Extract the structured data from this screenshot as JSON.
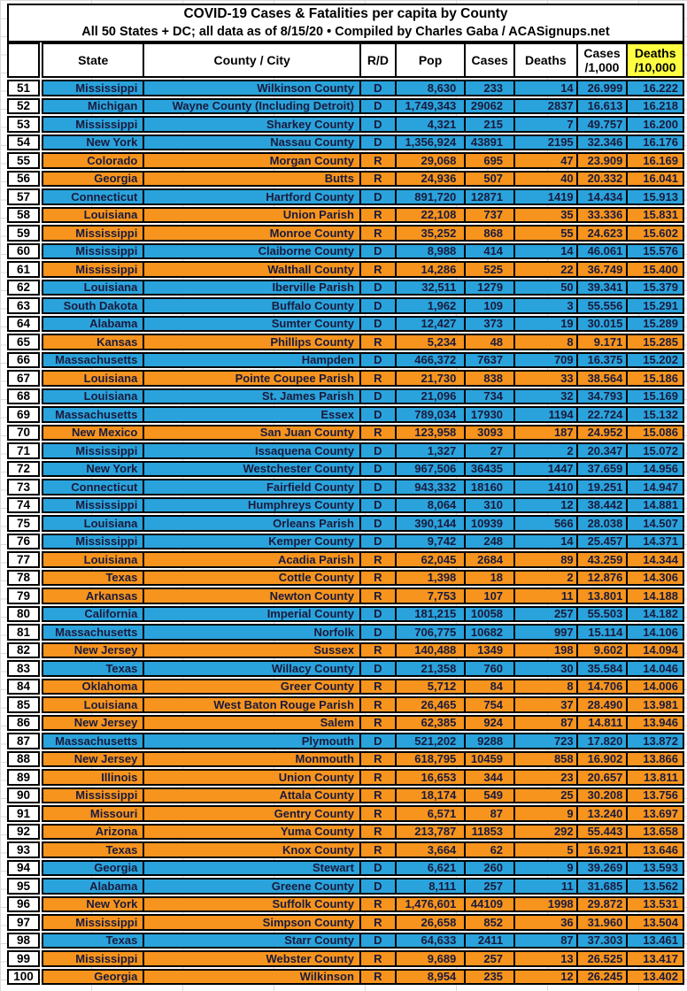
{
  "title": {
    "line1": "COVID-19 Cases & Fatalities per capita by County",
    "line2": "All 50 States + DC; all data as of 8/15/20  • Compiled by Charles Gaba / ACASignups.net"
  },
  "colors": {
    "democrat_row": "#2aa3dc",
    "republican_row": "#f7941e",
    "deaths_header_highlight": "#ffff42",
    "cell_text": "#1a1a3c",
    "grid_border": "#000000"
  },
  "columns": [
    {
      "key": "rank",
      "label": ""
    },
    {
      "key": "state",
      "label": "State"
    },
    {
      "key": "county",
      "label": "County / City"
    },
    {
      "key": "party",
      "label": "R/D"
    },
    {
      "key": "pop",
      "label": "Pop"
    },
    {
      "key": "cases",
      "label": "Cases"
    },
    {
      "key": "deaths",
      "label": "Deaths"
    },
    {
      "key": "cases_per_1000",
      "label": "Cases\n/1,000"
    },
    {
      "key": "deaths_per_10000",
      "label": "Deaths\n/10,000"
    }
  ],
  "rows": [
    {
      "rank": "51",
      "state": "Mississippi",
      "county": "Wilkinson County",
      "party": "D",
      "pop": "8,630",
      "cases": "233",
      "deaths": "14",
      "cases_per_1000": "26.999",
      "deaths_per_10000": "16.222"
    },
    {
      "rank": "52",
      "state": "Michigan",
      "county": "Wayne County (Including Detroit)",
      "party": "D",
      "pop": "1,749,343",
      "cases": "29062",
      "deaths": "2837",
      "cases_per_1000": "16.613",
      "deaths_per_10000": "16.218"
    },
    {
      "rank": "53",
      "state": "Mississippi",
      "county": "Sharkey County",
      "party": "D",
      "pop": "4,321",
      "cases": "215",
      "deaths": "7",
      "cases_per_1000": "49.757",
      "deaths_per_10000": "16.200"
    },
    {
      "rank": "54",
      "state": "New York",
      "county": "Nassau County",
      "party": "D",
      "pop": "1,356,924",
      "cases": "43891",
      "deaths": "2195",
      "cases_per_1000": "32.346",
      "deaths_per_10000": "16.176"
    },
    {
      "rank": "55",
      "state": "Colorado",
      "county": "Morgan County",
      "party": "R",
      "pop": "29,068",
      "cases": "695",
      "deaths": "47",
      "cases_per_1000": "23.909",
      "deaths_per_10000": "16.169"
    },
    {
      "rank": "56",
      "state": "Georgia",
      "county": "Butts",
      "party": "R",
      "pop": "24,936",
      "cases": "507",
      "deaths": "40",
      "cases_per_1000": "20.332",
      "deaths_per_10000": "16.041"
    },
    {
      "rank": "57",
      "state": "Connecticut",
      "county": "Hartford County",
      "party": "D",
      "pop": "891,720",
      "cases": "12871",
      "deaths": "1419",
      "cases_per_1000": "14.434",
      "deaths_per_10000": "15.913"
    },
    {
      "rank": "58",
      "state": "Louisiana",
      "county": "Union Parish",
      "party": "R",
      "pop": "22,108",
      "cases": "737",
      "deaths": "35",
      "cases_per_1000": "33.336",
      "deaths_per_10000": "15.831"
    },
    {
      "rank": "59",
      "state": "Mississippi",
      "county": "Monroe County",
      "party": "R",
      "pop": "35,252",
      "cases": "868",
      "deaths": "55",
      "cases_per_1000": "24.623",
      "deaths_per_10000": "15.602"
    },
    {
      "rank": "60",
      "state": "Mississippi",
      "county": "Claiborne County",
      "party": "D",
      "pop": "8,988",
      "cases": "414",
      "deaths": "14",
      "cases_per_1000": "46.061",
      "deaths_per_10000": "15.576"
    },
    {
      "rank": "61",
      "state": "Mississippi",
      "county": "Walthall County",
      "party": "R",
      "pop": "14,286",
      "cases": "525",
      "deaths": "22",
      "cases_per_1000": "36.749",
      "deaths_per_10000": "15.400"
    },
    {
      "rank": "62",
      "state": "Louisiana",
      "county": "Iberville Parish",
      "party": "D",
      "pop": "32,511",
      "cases": "1279",
      "deaths": "50",
      "cases_per_1000": "39.341",
      "deaths_per_10000": "15.379"
    },
    {
      "rank": "63",
      "state": "South Dakota",
      "county": "Buffalo County",
      "party": "D",
      "pop": "1,962",
      "cases": "109",
      "deaths": "3",
      "cases_per_1000": "55.556",
      "deaths_per_10000": "15.291"
    },
    {
      "rank": "64",
      "state": "Alabama",
      "county": "Sumter County",
      "party": "D",
      "pop": "12,427",
      "cases": "373",
      "deaths": "19",
      "cases_per_1000": "30.015",
      "deaths_per_10000": "15.289"
    },
    {
      "rank": "65",
      "state": "Kansas",
      "county": "Phillips County",
      "party": "R",
      "pop": "5,234",
      "cases": "48",
      "deaths": "8",
      "cases_per_1000": "9.171",
      "deaths_per_10000": "15.285"
    },
    {
      "rank": "66",
      "state": "Massachusetts",
      "county": "Hampden",
      "party": "D",
      "pop": "466,372",
      "cases": "7637",
      "deaths": "709",
      "cases_per_1000": "16.375",
      "deaths_per_10000": "15.202"
    },
    {
      "rank": "67",
      "state": "Louisiana",
      "county": "Pointe Coupee Parish",
      "party": "R",
      "pop": "21,730",
      "cases": "838",
      "deaths": "33",
      "cases_per_1000": "38.564",
      "deaths_per_10000": "15.186"
    },
    {
      "rank": "68",
      "state": "Louisiana",
      "county": "St. James Parish",
      "party": "D",
      "pop": "21,096",
      "cases": "734",
      "deaths": "32",
      "cases_per_1000": "34.793",
      "deaths_per_10000": "15.169"
    },
    {
      "rank": "69",
      "state": "Massachusetts",
      "county": "Essex",
      "party": "D",
      "pop": "789,034",
      "cases": "17930",
      "deaths": "1194",
      "cases_per_1000": "22.724",
      "deaths_per_10000": "15.132"
    },
    {
      "rank": "70",
      "state": "New Mexico",
      "county": "San Juan County",
      "party": "R",
      "pop": "123,958",
      "cases": "3093",
      "deaths": "187",
      "cases_per_1000": "24.952",
      "deaths_per_10000": "15.086"
    },
    {
      "rank": "71",
      "state": "Mississippi",
      "county": "Issaquena County",
      "party": "D",
      "pop": "1,327",
      "cases": "27",
      "deaths": "2",
      "cases_per_1000": "20.347",
      "deaths_per_10000": "15.072"
    },
    {
      "rank": "72",
      "state": "New York",
      "county": "Westchester County",
      "party": "D",
      "pop": "967,506",
      "cases": "36435",
      "deaths": "1447",
      "cases_per_1000": "37.659",
      "deaths_per_10000": "14.956"
    },
    {
      "rank": "73",
      "state": "Connecticut",
      "county": "Fairfield County",
      "party": "D",
      "pop": "943,332",
      "cases": "18160",
      "deaths": "1410",
      "cases_per_1000": "19.251",
      "deaths_per_10000": "14.947"
    },
    {
      "rank": "74",
      "state": "Mississippi",
      "county": "Humphreys County",
      "party": "D",
      "pop": "8,064",
      "cases": "310",
      "deaths": "12",
      "cases_per_1000": "38.442",
      "deaths_per_10000": "14.881"
    },
    {
      "rank": "75",
      "state": "Louisiana",
      "county": "Orleans Parish",
      "party": "D",
      "pop": "390,144",
      "cases": "10939",
      "deaths": "566",
      "cases_per_1000": "28.038",
      "deaths_per_10000": "14.507"
    },
    {
      "rank": "76",
      "state": "Mississippi",
      "county": "Kemper County",
      "party": "D",
      "pop": "9,742",
      "cases": "248",
      "deaths": "14",
      "cases_per_1000": "25.457",
      "deaths_per_10000": "14.371"
    },
    {
      "rank": "77",
      "state": "Louisiana",
      "county": "Acadia Parish",
      "party": "R",
      "pop": "62,045",
      "cases": "2684",
      "deaths": "89",
      "cases_per_1000": "43.259",
      "deaths_per_10000": "14.344"
    },
    {
      "rank": "78",
      "state": "Texas",
      "county": "Cottle County",
      "party": "R",
      "pop": "1,398",
      "cases": "18",
      "deaths": "2",
      "cases_per_1000": "12.876",
      "deaths_per_10000": "14.306"
    },
    {
      "rank": "79",
      "state": "Arkansas",
      "county": "Newton County",
      "party": "R",
      "pop": "7,753",
      "cases": "107",
      "deaths": "11",
      "cases_per_1000": "13.801",
      "deaths_per_10000": "14.188"
    },
    {
      "rank": "80",
      "state": "California",
      "county": "Imperial County",
      "party": "D",
      "pop": "181,215",
      "cases": "10058",
      "deaths": "257",
      "cases_per_1000": "55.503",
      "deaths_per_10000": "14.182"
    },
    {
      "rank": "81",
      "state": "Massachusetts",
      "county": "Norfolk",
      "party": "D",
      "pop": "706,775",
      "cases": "10682",
      "deaths": "997",
      "cases_per_1000": "15.114",
      "deaths_per_10000": "14.106"
    },
    {
      "rank": "82",
      "state": "New Jersey",
      "county": "Sussex",
      "party": "R",
      "pop": "140,488",
      "cases": "1349",
      "deaths": "198",
      "cases_per_1000": "9.602",
      "deaths_per_10000": "14.094"
    },
    {
      "rank": "83",
      "state": "Texas",
      "county": "Willacy County",
      "party": "D",
      "pop": "21,358",
      "cases": "760",
      "deaths": "30",
      "cases_per_1000": "35.584",
      "deaths_per_10000": "14.046"
    },
    {
      "rank": "84",
      "state": "Oklahoma",
      "county": "Greer County",
      "party": "R",
      "pop": "5,712",
      "cases": "84",
      "deaths": "8",
      "cases_per_1000": "14.706",
      "deaths_per_10000": "14.006"
    },
    {
      "rank": "85",
      "state": "Louisiana",
      "county": "West Baton Rouge Parish",
      "party": "R",
      "pop": "26,465",
      "cases": "754",
      "deaths": "37",
      "cases_per_1000": "28.490",
      "deaths_per_10000": "13.981"
    },
    {
      "rank": "86",
      "state": "New Jersey",
      "county": "Salem",
      "party": "R",
      "pop": "62,385",
      "cases": "924",
      "deaths": "87",
      "cases_per_1000": "14.811",
      "deaths_per_10000": "13.946"
    },
    {
      "rank": "87",
      "state": "Massachusetts",
      "county": "Plymouth",
      "party": "D",
      "pop": "521,202",
      "cases": "9288",
      "deaths": "723",
      "cases_per_1000": "17.820",
      "deaths_per_10000": "13.872"
    },
    {
      "rank": "88",
      "state": "New Jersey",
      "county": "Monmouth",
      "party": "R",
      "pop": "618,795",
      "cases": "10459",
      "deaths": "858",
      "cases_per_1000": "16.902",
      "deaths_per_10000": "13.866"
    },
    {
      "rank": "89",
      "state": "Illinois",
      "county": "Union County",
      "party": "R",
      "pop": "16,653",
      "cases": "344",
      "deaths": "23",
      "cases_per_1000": "20.657",
      "deaths_per_10000": "13.811"
    },
    {
      "rank": "90",
      "state": "Mississippi",
      "county": "Attala County",
      "party": "R",
      "pop": "18,174",
      "cases": "549",
      "deaths": "25",
      "cases_per_1000": "30.208",
      "deaths_per_10000": "13.756"
    },
    {
      "rank": "91",
      "state": "Missouri",
      "county": "Gentry County",
      "party": "R",
      "pop": "6,571",
      "cases": "87",
      "deaths": "9",
      "cases_per_1000": "13.240",
      "deaths_per_10000": "13.697"
    },
    {
      "rank": "92",
      "state": "Arizona",
      "county": "Yuma County",
      "party": "R",
      "pop": "213,787",
      "cases": "11853",
      "deaths": "292",
      "cases_per_1000": "55.443",
      "deaths_per_10000": "13.658"
    },
    {
      "rank": "93",
      "state": "Texas",
      "county": "Knox County",
      "party": "R",
      "pop": "3,664",
      "cases": "62",
      "deaths": "5",
      "cases_per_1000": "16.921",
      "deaths_per_10000": "13.646"
    },
    {
      "rank": "94",
      "state": "Georgia",
      "county": "Stewart",
      "party": "D",
      "pop": "6,621",
      "cases": "260",
      "deaths": "9",
      "cases_per_1000": "39.269",
      "deaths_per_10000": "13.593"
    },
    {
      "rank": "95",
      "state": "Alabama",
      "county": "Greene County",
      "party": "D",
      "pop": "8,111",
      "cases": "257",
      "deaths": "11",
      "cases_per_1000": "31.685",
      "deaths_per_10000": "13.562"
    },
    {
      "rank": "96",
      "state": "New York",
      "county": "Suffolk County",
      "party": "R",
      "pop": "1,476,601",
      "cases": "44109",
      "deaths": "1998",
      "cases_per_1000": "29.872",
      "deaths_per_10000": "13.531"
    },
    {
      "rank": "97",
      "state": "Mississippi",
      "county": "Simpson County",
      "party": "R",
      "pop": "26,658",
      "cases": "852",
      "deaths": "36",
      "cases_per_1000": "31.960",
      "deaths_per_10000": "13.504"
    },
    {
      "rank": "98",
      "state": "Texas",
      "county": "Starr County",
      "party": "D",
      "pop": "64,633",
      "cases": "2411",
      "deaths": "87",
      "cases_per_1000": "37.303",
      "deaths_per_10000": "13.461"
    },
    {
      "rank": "99",
      "state": "Mississippi",
      "county": "Webster County",
      "party": "R",
      "pop": "9,689",
      "cases": "257",
      "deaths": "13",
      "cases_per_1000": "26.525",
      "deaths_per_10000": "13.417"
    },
    {
      "rank": "100",
      "state": "Georgia",
      "county": "Wilkinson",
      "party": "R",
      "pop": "8,954",
      "cases": "235",
      "deaths": "12",
      "cases_per_1000": "26.245",
      "deaths_per_10000": "13.402"
    }
  ]
}
